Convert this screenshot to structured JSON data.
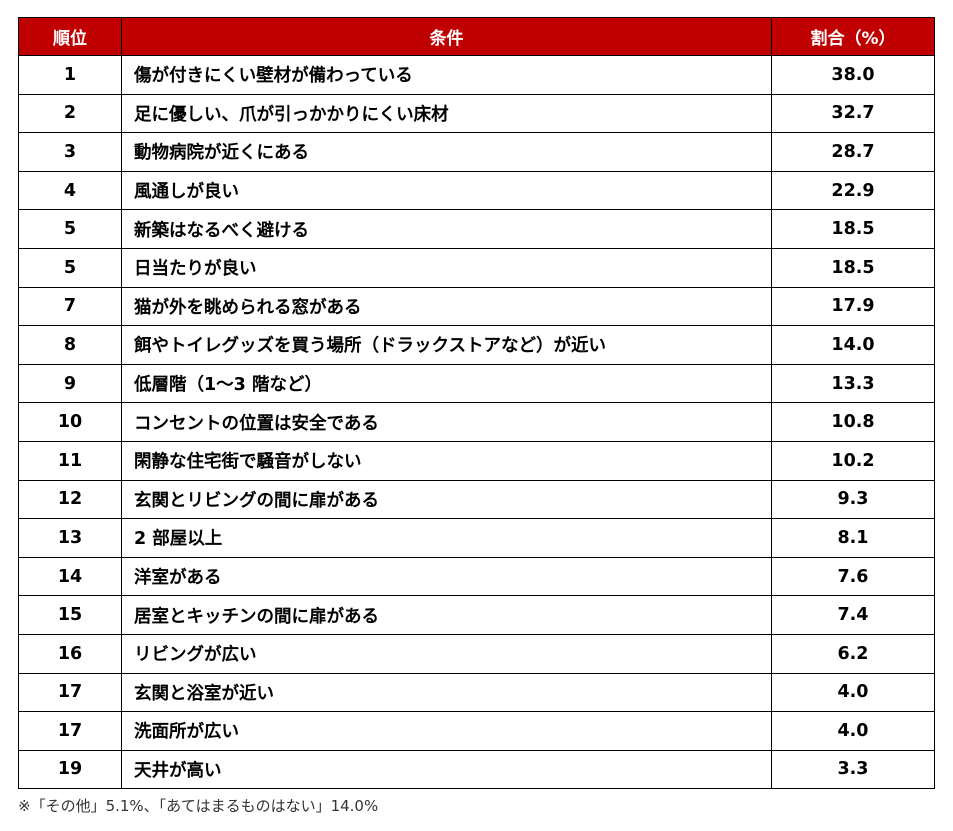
{
  "table": {
    "headers": {
      "rank": "順位",
      "condition": "条件",
      "percent": "割合（%）"
    },
    "rows": [
      {
        "rank": "1",
        "condition": "傷が付きにくい壁材が備わっている",
        "percent": "38.0"
      },
      {
        "rank": "2",
        "condition": "足に優しい、爪が引っかかりにくい床材",
        "percent": "32.7"
      },
      {
        "rank": "3",
        "condition": "動物病院が近くにある",
        "percent": "28.7"
      },
      {
        "rank": "4",
        "condition": "風通しが良い",
        "percent": "22.9"
      },
      {
        "rank": "5",
        "condition": "新築はなるべく避ける",
        "percent": "18.5"
      },
      {
        "rank": "5",
        "condition": "日当たりが良い",
        "percent": "18.5"
      },
      {
        "rank": "7",
        "condition": "猫が外を眺められる窓がある",
        "percent": "17.9"
      },
      {
        "rank": "8",
        "condition": "餌やトイレグッズを買う場所（ドラックストアなど）が近い",
        "percent": "14.0"
      },
      {
        "rank": "9",
        "condition": "低層階（1～3 階など）",
        "percent": "13.3"
      },
      {
        "rank": "10",
        "condition": "コンセントの位置は安全である",
        "percent": "10.8"
      },
      {
        "rank": "11",
        "condition": "閑静な住宅街で騒音がしない",
        "percent": "10.2"
      },
      {
        "rank": "12",
        "condition": "玄関とリビングの間に扉がある",
        "percent": "9.3"
      },
      {
        "rank": "13",
        "condition": "2 部屋以上",
        "percent": "8.1"
      },
      {
        "rank": "14",
        "condition": "洋室がある",
        "percent": "7.6"
      },
      {
        "rank": "15",
        "condition": "居室とキッチンの間に扉がある",
        "percent": "7.4"
      },
      {
        "rank": "16",
        "condition": "リビングが広い",
        "percent": "6.2"
      },
      {
        "rank": "17",
        "condition": "玄関と浴室が近い",
        "percent": "4.0"
      },
      {
        "rank": "17",
        "condition": "洗面所が広い",
        "percent": "4.0"
      },
      {
        "rank": "19",
        "condition": "天井が高い",
        "percent": "3.3"
      }
    ]
  },
  "footnote": "※「その他」5.1%、「あてはまるものはない」14.0%",
  "colors": {
    "header_background": "#c00000",
    "header_text": "#ffffff",
    "border": "#000000"
  }
}
